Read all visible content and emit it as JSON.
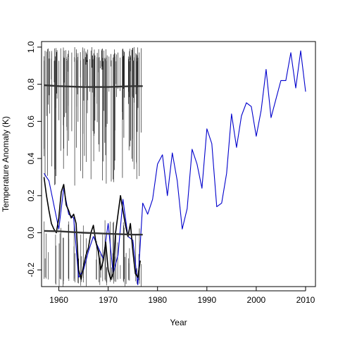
{
  "chart_data": {
    "type": "line",
    "title": "",
    "xlabel": "Year",
    "ylabel": "Temperature Anomaly (K)",
    "xlim": [
      1956.5,
      2012
    ],
    "ylim": [
      -0.29,
      1.03
    ],
    "x_ticks": [
      1960,
      1970,
      1980,
      1990,
      2000,
      2010
    ],
    "x_tick_labels": [
      "1960",
      "1970",
      "1980",
      "1990",
      "2000",
      "2010"
    ],
    "y_ticks": [
      -0.2,
      0.0,
      0.2,
      0.4,
      0.6,
      0.8,
      1.0
    ],
    "y_tick_labels": [
      "-0.2",
      "0.0",
      "0.2",
      "0.4",
      "0.6",
      "0.8",
      "1.0"
    ],
    "grid": false,
    "legend": "none",
    "series": [
      {
        "color": "#0000cc",
        "x": [
          1957,
          1958,
          1959,
          1960,
          1961,
          1962,
          1963,
          1964,
          1965,
          1966,
          1967,
          1968,
          1969,
          1970,
          1971,
          1972,
          1973,
          1974,
          1975,
          1976,
          1977,
          1978,
          1979,
          1980,
          1981,
          1982,
          1983,
          1984,
          1985,
          1986,
          1987,
          1988,
          1989,
          1990,
          1991,
          1992,
          1993,
          1994,
          1995,
          1996,
          1997,
          1998,
          1999,
          2000,
          2001,
          2002,
          2003,
          2004,
          2005,
          2006,
          2007,
          2008,
          2009,
          2010
        ],
        "y": [
          0.32,
          0.28,
          0.15,
          0.02,
          0.24,
          0.1,
          0.08,
          -0.24,
          -0.2,
          -0.1,
          -0.02,
          -0.08,
          -0.14,
          0.05,
          -0.22,
          -0.12,
          0.18,
          -0.02,
          -0.04,
          -0.28,
          0.16,
          0.1,
          0.18,
          0.37,
          0.42,
          0.2,
          0.43,
          0.28,
          0.02,
          0.13,
          0.45,
          0.37,
          0.24,
          0.56,
          0.48,
          0.14,
          0.16,
          0.32,
          0.64,
          0.46,
          0.63,
          0.7,
          0.68,
          0.52,
          0.66,
          0.88,
          0.62,
          0.72,
          0.82,
          0.82,
          0.97,
          0.78,
          0.98,
          0.76
        ]
      },
      {
        "color": "#000000",
        "x": [
          1957,
          1957.5,
          1958,
          1958.5,
          1959,
          1959.5,
          1960,
          1960.5,
          1961,
          1961.5,
          1962,
          1962.5,
          1963,
          1963.5,
          1964,
          1964.5,
          1965,
          1965.5,
          1966,
          1966.5,
          1967,
          1967.5,
          1968,
          1968.5,
          1969,
          1969.5,
          1970,
          1970.5,
          1971,
          1971.5,
          1972,
          1972.5,
          1973,
          1973.5,
          1974,
          1974.5,
          1975,
          1975.5,
          1976,
          1976.5
        ],
        "y": [
          0.3,
          0.2,
          0.12,
          0.05,
          0.02,
          0.0,
          0.08,
          0.22,
          0.26,
          0.15,
          0.12,
          0.08,
          0.1,
          0.05,
          -0.2,
          -0.25,
          -0.18,
          -0.12,
          -0.08,
          0.0,
          0.04,
          -0.05,
          -0.1,
          -0.2,
          -0.15,
          -0.05,
          -0.2,
          -0.25,
          -0.22,
          0.0,
          0.1,
          0.2,
          0.12,
          0.04,
          -0.02,
          0.05,
          -0.1,
          -0.22,
          -0.24,
          -0.15
        ]
      },
      {
        "color": "#333333",
        "x": [
          1957,
          1960,
          1965,
          1970,
          1975,
          1977
        ],
        "y": [
          0.01,
          0.008,
          0.0,
          -0.005,
          -0.01,
          -0.01
        ]
      },
      {
        "color": "#333333",
        "x": [
          1957,
          1960,
          1965,
          1970,
          1975,
          1977
        ],
        "y": [
          0.795,
          0.79,
          0.785,
          0.785,
          0.79,
          0.79
        ]
      }
    ]
  }
}
